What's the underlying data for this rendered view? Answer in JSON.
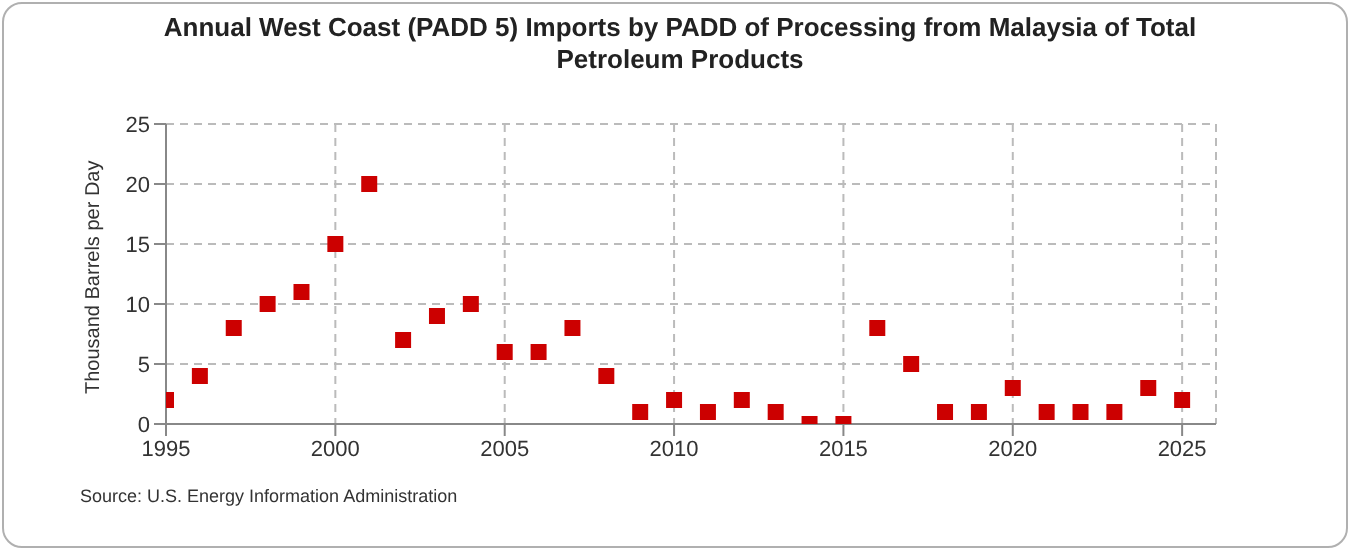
{
  "chart_data": {
    "type": "scatter",
    "title": "Annual West Coast (PADD 5) Imports by PADD of Processing from Malaysia of Total Petroleum Products",
    "ylabel": "Thousand Barrels per Day",
    "annotations": [
      "Source: U.S. Energy Information Administration"
    ],
    "x": [
      1995,
      1996,
      1997,
      1998,
      1999,
      2000,
      2001,
      2002,
      2003,
      2004,
      2005,
      2006,
      2007,
      2008,
      2009,
      2010,
      2011,
      2012,
      2013,
      2014,
      2015,
      2016,
      2017,
      2018,
      2019,
      2020,
      2021,
      2022,
      2023,
      2024,
      2025
    ],
    "series": [
      {
        "color": "#cc0000",
        "values": [
          2,
          4,
          8,
          10,
          11,
          15,
          20,
          7,
          9,
          10,
          6,
          6,
          8,
          4,
          1,
          2,
          1,
          2,
          1,
          0,
          0,
          8,
          5,
          1,
          1,
          3,
          1,
          1,
          1,
          3,
          2
        ]
      }
    ],
    "xlim": [
      1995,
      2026
    ],
    "xticks": [
      1995,
      2000,
      2005,
      2010,
      2015,
      2020,
      2025
    ],
    "ylim": [
      0,
      25
    ],
    "yticks": [
      0,
      5,
      10,
      15,
      20,
      25
    ],
    "grid": true,
    "marker": "square"
  }
}
